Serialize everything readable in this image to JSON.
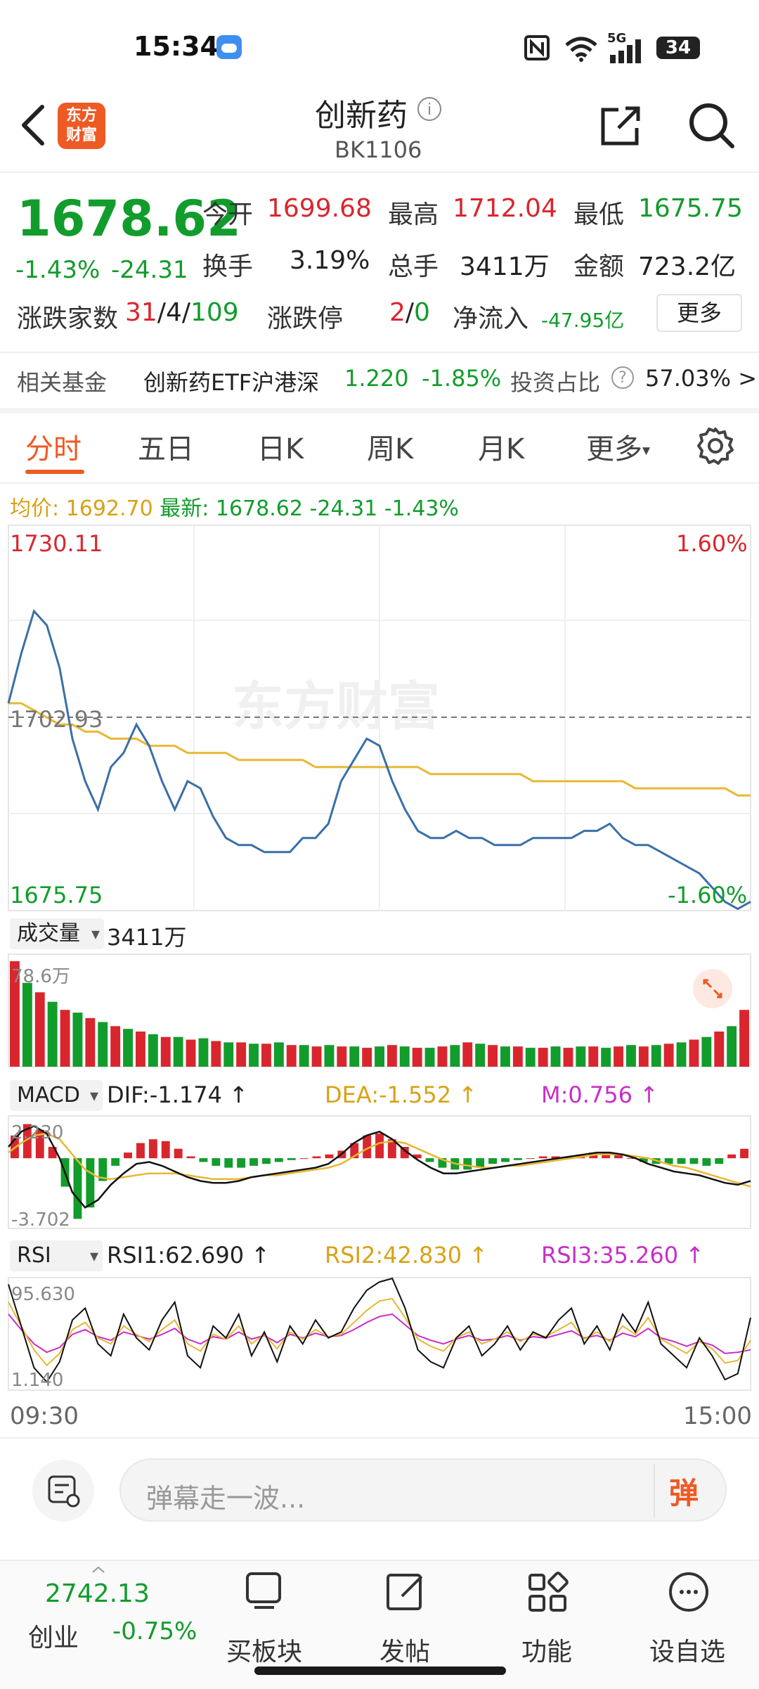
{
  "status_bar": {
    "time": "15:34",
    "network": "5G",
    "battery": "34",
    "icons": [
      "weather-icon",
      "nfc-icon",
      "wifi-icon",
      "signal-icon",
      "battery-icon"
    ]
  },
  "header": {
    "logo_text": [
      "东方",
      "财富"
    ],
    "title": "创新药",
    "code": "BK1106"
  },
  "quote": {
    "price": "1678.62",
    "change_pct": "-1.43%",
    "change_value": "-24.31",
    "open_label": "今开",
    "open_value": "1699.68",
    "high_label": "最高",
    "high_value": "1712.04",
    "low_label": "最低",
    "low_value": "1675.75",
    "turnover_label": "换手",
    "turnover_value": "3.19%",
    "volume_label": "总手",
    "volume_value": "3411万",
    "amount_label": "金额",
    "amount_value": "723.2亿",
    "breadth_label": "涨跌家数",
    "breadth_up": "31",
    "breadth_flat": "4",
    "breadth_down": "109",
    "breadth_sep": "/",
    "limit_label": "涨跌停",
    "limit_up": "2",
    "limit_down": "0",
    "inflow_label": "净流入",
    "inflow_value": "-47.95亿",
    "more_label": "更多"
  },
  "fund": {
    "label": "相关基金",
    "name": "创新药ETF沪港深",
    "price": "1.220",
    "change": "-1.85%",
    "ratio_label": "投资占比",
    "ratio_value": "57.03% >"
  },
  "tabs": {
    "items": [
      "分时",
      "五日",
      "日K",
      "周K",
      "月K",
      "更多"
    ],
    "active": "分时"
  },
  "chart_info": {
    "avg_label": "均价:",
    "avg_value": "1692.70",
    "latest_label": "最新:",
    "latest_value": "1678.62",
    "latest_change": "-24.31",
    "latest_pct": "-1.43%"
  },
  "chart_data": {
    "type": "line",
    "y_max": "1730.11",
    "y_mid": "1702.93",
    "y_min": "1675.75",
    "pct_max": "1.60%",
    "pct_min": "-1.60%",
    "watermark": "东方财富",
    "ylim": [
      1675.75,
      1730.11
    ],
    "x_start": "09:30",
    "x_end": "15:00",
    "price_series": [
      1705,
      1712,
      1718,
      1716,
      1710,
      1700,
      1694,
      1690,
      1696,
      1698,
      1702,
      1699,
      1694,
      1690,
      1694,
      1693,
      1689,
      1686,
      1685,
      1685,
      1684,
      1684,
      1684,
      1686,
      1686,
      1688,
      1694,
      1697,
      1700,
      1699,
      1694,
      1690,
      1687,
      1686,
      1686,
      1687,
      1686,
      1686,
      1685,
      1685,
      1685,
      1686,
      1686,
      1686,
      1686,
      1687,
      1687,
      1688,
      1686,
      1685,
      1685,
      1684,
      1683,
      1682,
      1681,
      1679,
      1677,
      1676,
      1677
    ],
    "avg_series": [
      1705,
      1705,
      1704,
      1703,
      1702,
      1702,
      1701,
      1701,
      1700,
      1700,
      1700,
      1699,
      1699,
      1699,
      1698,
      1698,
      1698,
      1698,
      1697,
      1697,
      1697,
      1697,
      1697,
      1697,
      1696,
      1696,
      1696,
      1696,
      1696,
      1696,
      1696,
      1696,
      1696,
      1695,
      1695,
      1695,
      1695,
      1695,
      1695,
      1695,
      1695,
      1694,
      1694,
      1694,
      1694,
      1694,
      1694,
      1694,
      1694,
      1693,
      1693,
      1693,
      1693,
      1693,
      1693,
      1693,
      1693,
      1692,
      1692
    ],
    "volume": {
      "label": "成交量",
      "value": "3411万",
      "max_label": "78.6万",
      "bars": [
        78,
        62,
        55,
        48,
        42,
        40,
        36,
        33,
        30,
        28,
        26,
        24,
        22,
        22,
        20,
        21,
        19,
        18,
        18,
        17,
        17,
        18,
        16,
        16,
        15,
        16,
        15,
        15,
        14,
        15,
        16,
        15,
        14,
        14,
        15,
        16,
        18,
        17,
        16,
        15,
        15,
        14,
        14,
        15,
        14,
        15,
        15,
        14,
        15,
        16,
        15,
        16,
        17,
        18,
        20,
        22,
        26,
        30,
        42
      ]
    },
    "macd": {
      "label": "MACD",
      "dif_label": "DIF:-1.174 ↑",
      "dea_label": "DEA:-1.552 ↑",
      "m_label": "M:0.756 ↑",
      "y_max": "2.230",
      "y_min": "-3.702",
      "ylim": [
        -3.702,
        2.23
      ],
      "hist": [
        1.2,
        1.8,
        1.5,
        0.6,
        -1.5,
        -3.2,
        -2.6,
        -1.2,
        -0.4,
        0.3,
        0.8,
        1.0,
        0.9,
        0.5,
        0.1,
        -0.2,
        -0.4,
        -0.5,
        -0.5,
        -0.4,
        -0.3,
        -0.2,
        -0.1,
        0.0,
        0.1,
        0.2,
        0.4,
        0.8,
        1.2,
        1.3,
        1.0,
        0.6,
        0.2,
        -0.2,
        -0.5,
        -0.6,
        -0.6,
        -0.5,
        -0.3,
        -0.2,
        -0.1,
        0.0,
        0.1,
        0.1,
        0.1,
        0.2,
        0.3,
        0.3,
        0.2,
        0.0,
        -0.2,
        -0.3,
        -0.3,
        -0.3,
        -0.3,
        -0.4,
        -0.3,
        0.2,
        0.5
      ],
      "dif": [
        0.6,
        1.4,
        1.7,
        1.3,
        0.0,
        -1.8,
        -2.6,
        -2.2,
        -1.4,
        -0.8,
        -0.3,
        -0.2,
        -0.4,
        -0.7,
        -1.0,
        -1.2,
        -1.3,
        -1.3,
        -1.2,
        -1.0,
        -0.9,
        -0.8,
        -0.7,
        -0.6,
        -0.5,
        -0.3,
        0.2,
        0.8,
        1.2,
        1.4,
        1.0,
        0.4,
        -0.1,
        -0.5,
        -0.8,
        -0.8,
        -0.7,
        -0.6,
        -0.5,
        -0.4,
        -0.3,
        -0.2,
        -0.1,
        0.0,
        0.1,
        0.2,
        0.3,
        0.3,
        0.2,
        0.0,
        -0.3,
        -0.5,
        -0.7,
        -0.8,
        -0.9,
        -1.1,
        -1.3,
        -1.4,
        -1.2
      ],
      "dea": [
        0.3,
        0.8,
        1.2,
        1.3,
        1.0,
        0.2,
        -0.6,
        -1.0,
        -1.1,
        -1.0,
        -0.9,
        -0.8,
        -0.8,
        -0.8,
        -0.9,
        -1.0,
        -1.1,
        -1.1,
        -1.1,
        -1.0,
        -0.9,
        -0.9,
        -0.8,
        -0.7,
        -0.6,
        -0.5,
        -0.3,
        0.1,
        0.5,
        0.8,
        0.9,
        0.8,
        0.5,
        0.2,
        -0.1,
        -0.3,
        -0.4,
        -0.5,
        -0.5,
        -0.4,
        -0.4,
        -0.3,
        -0.2,
        -0.1,
        0.0,
        0.1,
        0.2,
        0.2,
        0.2,
        0.1,
        0.0,
        -0.2,
        -0.4,
        -0.5,
        -0.7,
        -0.9,
        -1.1,
        -1.3,
        -1.5
      ]
    },
    "rsi": {
      "label": "RSI",
      "rsi1_label": "RSI1:62.690 ↑",
      "rsi2_label": "RSI2:42.830 ↑",
      "rsi3_label": "RSI3:35.260 ↑",
      "y_max": "95.630",
      "y_min": "1.140",
      "ylim": [
        1.14,
        95.63
      ],
      "rsi1": [
        90,
        55,
        20,
        8,
        25,
        60,
        70,
        40,
        30,
        65,
        45,
        35,
        60,
        75,
        30,
        20,
        55,
        45,
        65,
        30,
        50,
        25,
        55,
        40,
        60,
        45,
        50,
        70,
        85,
        92,
        95,
        70,
        35,
        25,
        20,
        45,
        55,
        30,
        40,
        55,
        35,
        50,
        45,
        60,
        70,
        40,
        55,
        35,
        65,
        50,
        75,
        40,
        30,
        20,
        45,
        30,
        10,
        15,
        62
      ],
      "rsi2": [
        75,
        55,
        35,
        22,
        32,
        52,
        58,
        45,
        40,
        55,
        48,
        42,
        52,
        60,
        40,
        34,
        48,
        44,
        55,
        40,
        48,
        36,
        50,
        44,
        52,
        46,
        48,
        58,
        68,
        76,
        78,
        62,
        44,
        38,
        34,
        45,
        50,
        40,
        44,
        50,
        42,
        48,
        46,
        52,
        58,
        44,
        50,
        42,
        55,
        48,
        62,
        44,
        38,
        32,
        42,
        36,
        24,
        26,
        43
      ],
      "rsi3": [
        65,
        52,
        40,
        33,
        37,
        48,
        52,
        46,
        43,
        50,
        47,
        44,
        48,
        53,
        44,
        40,
        46,
        44,
        50,
        44,
        47,
        41,
        48,
        45,
        49,
        46,
        47,
        52,
        58,
        63,
        65,
        56,
        47,
        43,
        40,
        44,
        47,
        43,
        44,
        47,
        43,
        46,
        45,
        48,
        51,
        45,
        47,
        43,
        49,
        46,
        53,
        45,
        42,
        38,
        42,
        39,
        32,
        33,
        35
      ]
    }
  },
  "danmu": {
    "placeholder": "弹幕走一波...",
    "send_label": "弹"
  },
  "bottom_nav": {
    "index_name": "创业",
    "index_value": "2742.13",
    "index_change": "-0.75%",
    "items": [
      "买板块",
      "发帖",
      "功能",
      "设自选"
    ]
  },
  "colors": {
    "up": "#d9262e",
    "down": "#129c2c",
    "accent": "#ee5a24",
    "price_line": "#3a6fa8",
    "avg_line": "#e8b833"
  }
}
